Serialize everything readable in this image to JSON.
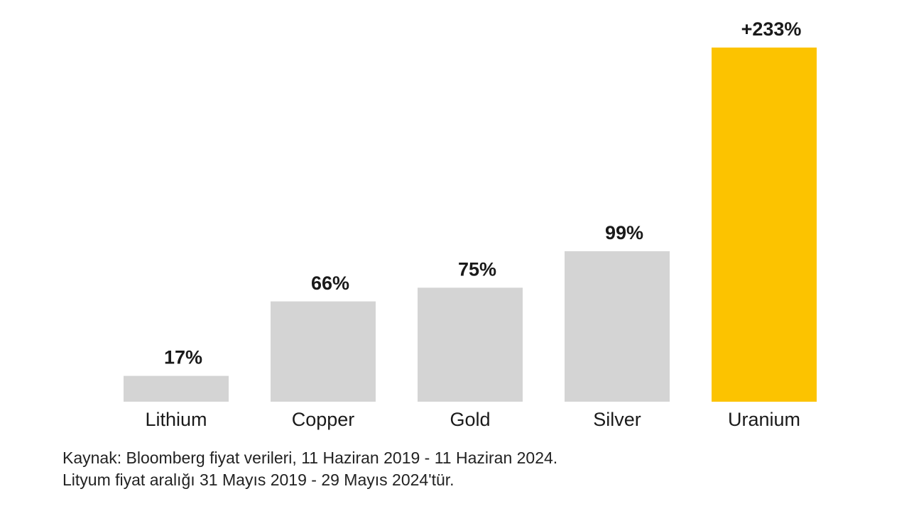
{
  "chart_data": {
    "type": "bar",
    "categories": [
      "Lithium",
      "Copper",
      "Gold",
      "Silver",
      "Uranium"
    ],
    "values": [
      17,
      66,
      75,
      99,
      233
    ],
    "value_labels": [
      "17%",
      "66%",
      "75%",
      "99%",
      "+233%"
    ],
    "colors": [
      "#d4d4d4",
      "#d4d4d4",
      "#d4d4d4",
      "#d4d4d4",
      "#fcc300"
    ],
    "notes": [
      "Kaynak: Bloomberg fiyat verileri, 11 Haziran 2019 - 11 Haziran 2024.",
      "Lityum fiyat aralığı 31 Mayıs 2019 - 29 Mayıs 2024'tür."
    ]
  }
}
